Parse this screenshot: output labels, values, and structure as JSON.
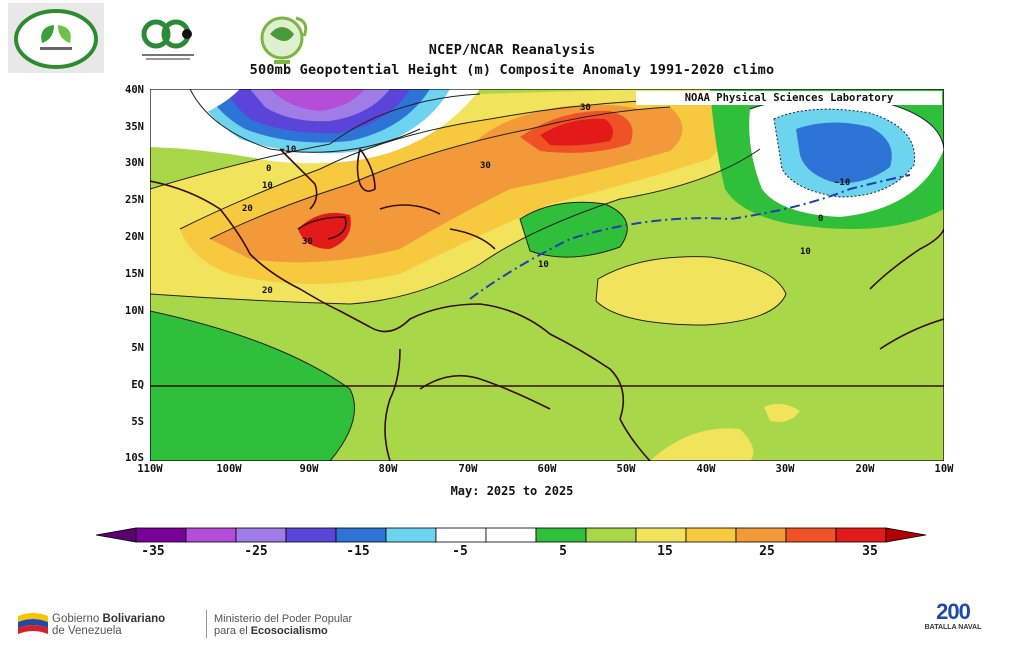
{
  "header": {
    "title_line1": "NCEP/NCAR Reanalysis",
    "title_line2": "500mb Geopotential Height (m) Composite Anomaly 1991-2020 climo",
    "credit": "NOAA Physical Sciences Laboratory"
  },
  "map": {
    "lat_labels": [
      "40N",
      "35N",
      "30N",
      "25N",
      "20N",
      "15N",
      "10N",
      "5N",
      "EQ",
      "5S",
      "10S"
    ],
    "lon_labels": [
      "110W",
      "100W",
      "90W",
      "80W",
      "70W",
      "60W",
      "50W",
      "40W",
      "30W",
      "20W",
      "10W"
    ],
    "contour_labels": [
      "-10",
      "-10",
      "30",
      "30",
      "10",
      "20",
      "30",
      "20",
      "10",
      "10",
      "0",
      "0"
    ],
    "period": "May: 2025 to 2025"
  },
  "colorbar": {
    "labels": [
      "-35",
      "-25",
      "-15",
      "-5",
      "5",
      "15",
      "25",
      "35"
    ],
    "colors": [
      "#7a0099",
      "#b44dd8",
      "#a07de6",
      "#5a45d8",
      "#2e73d6",
      "#6dd4f0",
      "#ffffff",
      "#ffffff",
      "#2fbf3b",
      "#a9d74a",
      "#f2e35c",
      "#f7c93f",
      "#f29a3a",
      "#ee5226",
      "#e31a1a"
    ]
  },
  "footer": {
    "gov_line1_a": "Gobierno ",
    "gov_line1_b": "Bolivariano",
    "gov_line2": "de Venezuela",
    "min_line1": "Ministerio del Poder Popular",
    "min_line2_a": "para el ",
    "min_line2_b": "Ecosocialismo",
    "bicentennial_number": "200",
    "bicentennial_text": "BATALLA NAVAL"
  }
}
